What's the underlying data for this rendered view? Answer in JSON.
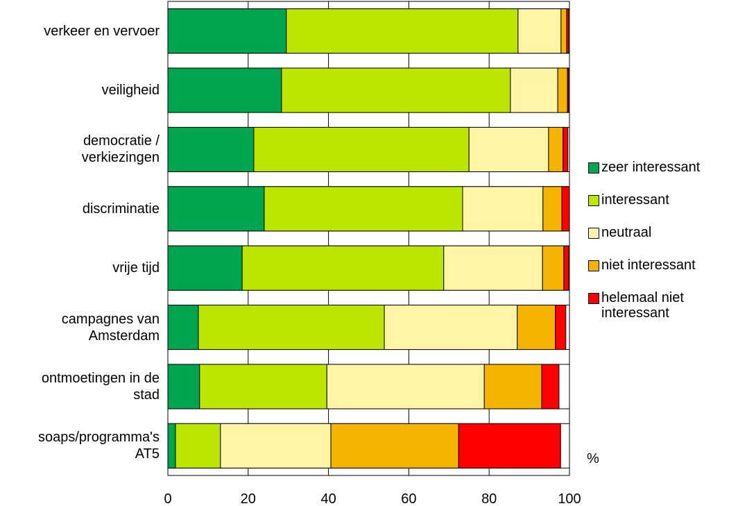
{
  "chart_data": {
    "type": "stacked-bar-horizontal",
    "categories": [
      "verkeer en vervoer",
      "veiligheid",
      "democratie / verkiezingen",
      "discriminatie",
      "vrije tijd",
      "campagnes van Amsterdam",
      "ontmoetingen in de stad",
      "soaps/programma's AT5"
    ],
    "series": [
      {
        "name": "zeer interessant",
        "color": "#00a550",
        "values": [
          29.5,
          28.3,
          21.4,
          24.0,
          18.5,
          7.6,
          7.9,
          1.9
        ]
      },
      {
        "name": "interessant",
        "color": "#bce600",
        "values": [
          57.7,
          57.0,
          53.6,
          49.4,
          50.2,
          46.3,
          31.7,
          11.2
        ]
      },
      {
        "name": "neutraal",
        "color": "#fff5a5",
        "values": [
          10.7,
          11.8,
          19.8,
          20.0,
          24.6,
          33.1,
          39.2,
          27.5
        ]
      },
      {
        "name": "niet interessant",
        "color": "#f5b400",
        "values": [
          1.4,
          2.4,
          3.6,
          4.7,
          5.3,
          9.5,
          14.3,
          31.8
        ]
      },
      {
        "name": "helemaal niet interessant",
        "color": "#ff0000",
        "values": [
          0.5,
          0.3,
          1.2,
          1.9,
          1.2,
          2.6,
          4.3,
          25.4
        ]
      }
    ],
    "xlim": [
      0,
      100
    ],
    "xticks": [
      0,
      20,
      40,
      60,
      80,
      100
    ],
    "unit_label": "%",
    "grid": true
  }
}
